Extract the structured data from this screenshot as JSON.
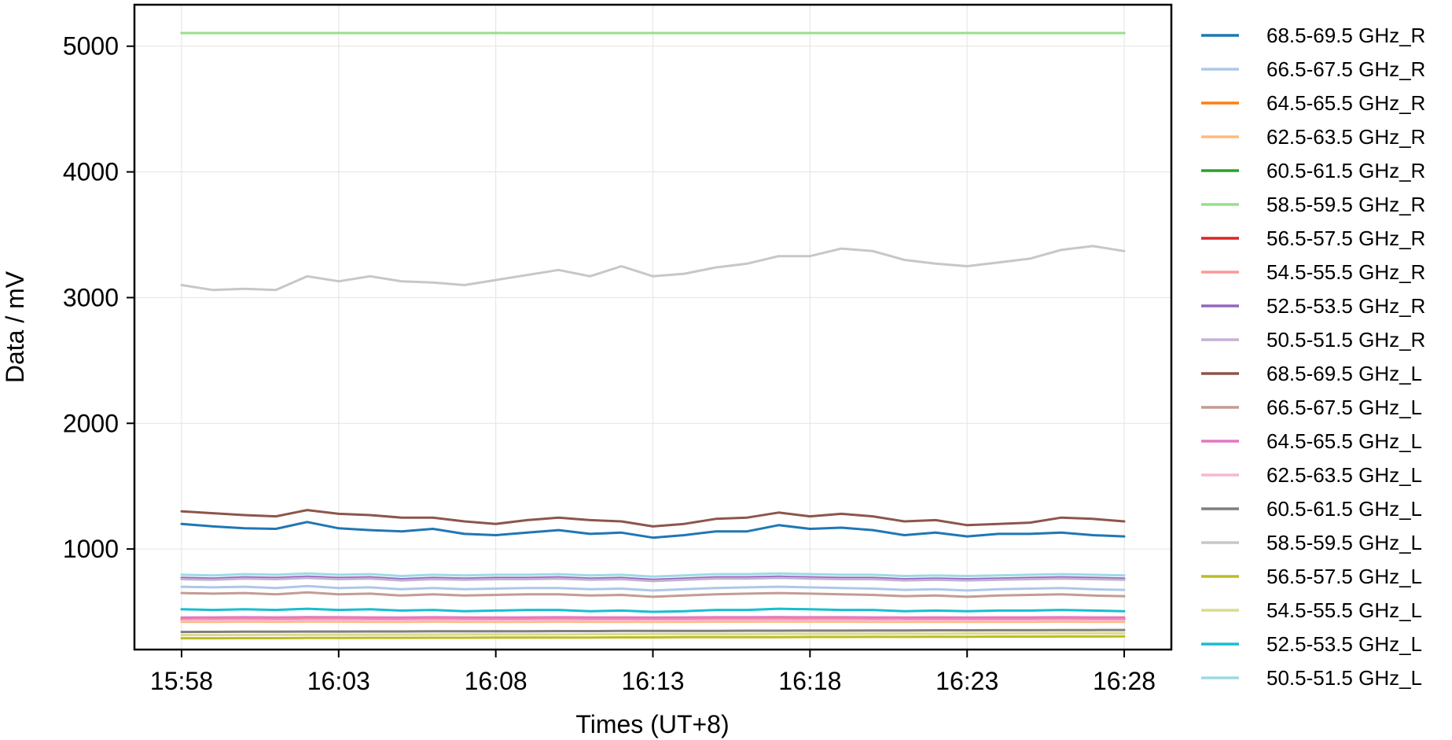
{
  "chart_data": {
    "type": "line",
    "title": "",
    "xlabel": "Times (UT+8)",
    "ylabel": "Data / mV",
    "x_ticks": [
      "15:58",
      "16:03",
      "16:08",
      "16:13",
      "16:18",
      "16:23",
      "16:28"
    ],
    "y_ticks": [
      1000,
      2000,
      3000,
      4000,
      5000
    ],
    "xlim": [
      "15:56:30",
      "16:29:30"
    ],
    "ylim": [
      200,
      5330
    ],
    "grid": true,
    "legend_position": "outside-right",
    "x": [
      "15:58",
      "15:59",
      "16:00",
      "16:01",
      "16:02",
      "16:03",
      "16:04",
      "16:05",
      "16:06",
      "16:07",
      "16:08",
      "16:09",
      "16:10",
      "16:11",
      "16:12",
      "16:13",
      "16:14",
      "16:15",
      "16:16",
      "16:17",
      "16:18",
      "16:19",
      "16:20",
      "16:21",
      "16:22",
      "16:23",
      "16:24",
      "16:25",
      "16:26",
      "16:27",
      "16:28"
    ],
    "series": [
      {
        "name": "68.5-69.5 GHz_R",
        "color": "#1f77b4",
        "values": [
          1200,
          1180,
          1165,
          1160,
          1215,
          1165,
          1150,
          1140,
          1160,
          1120,
          1110,
          1130,
          1150,
          1120,
          1130,
          1090,
          1110,
          1140,
          1140,
          1190,
          1160,
          1170,
          1150,
          1110,
          1130,
          1100,
          1120,
          1120,
          1130,
          1110,
          1100
        ]
      },
      {
        "name": "66.5-67.5 GHz_R",
        "color": "#aec7e8",
        "values": [
          700,
          695,
          700,
          690,
          705,
          690,
          695,
          680,
          690,
          680,
          685,
          690,
          690,
          680,
          685,
          670,
          680,
          690,
          695,
          700,
          695,
          690,
          685,
          675,
          680,
          670,
          680,
          685,
          690,
          680,
          675
        ]
      },
      {
        "name": "64.5-65.5 GHz_R",
        "color": "#ff7f0e",
        "values": [
          435,
          436,
          437,
          436,
          438,
          437,
          436,
          435,
          437,
          436,
          435,
          436,
          437,
          436,
          436,
          435,
          436,
          437,
          437,
          438,
          437,
          437,
          436,
          435,
          436,
          435,
          436,
          436,
          437,
          436,
          436
        ]
      },
      {
        "name": "62.5-63.5 GHz_R",
        "color": "#ffbb78",
        "values": [
          420,
          421,
          422,
          421,
          423,
          422,
          421,
          420,
          422,
          421,
          420,
          421,
          422,
          421,
          421,
          420,
          421,
          422,
          422,
          423,
          422,
          422,
          421,
          420,
          421,
          420,
          421,
          421,
          422,
          421,
          421
        ]
      },
      {
        "name": "60.5-61.5 GHz_R",
        "color": "#2ca02c",
        "values": [
          5105,
          5105,
          5105,
          5105,
          5105,
          5105,
          5105,
          5105,
          5105,
          5105,
          5105,
          5105,
          5105,
          5105,
          5105,
          5105,
          5105,
          5105,
          5105,
          5105,
          5105,
          5105,
          5105,
          5105,
          5105,
          5105,
          5105,
          5105,
          5105,
          5105,
          5105
        ]
      },
      {
        "name": "58.5-59.5 GHz_R",
        "color": "#98df8a",
        "values": [
          5105,
          5105,
          5105,
          5105,
          5105,
          5105,
          5105,
          5105,
          5105,
          5105,
          5105,
          5105,
          5105,
          5105,
          5105,
          5105,
          5105,
          5105,
          5105,
          5105,
          5105,
          5105,
          5105,
          5105,
          5105,
          5105,
          5105,
          5105,
          5105,
          5105,
          5105
        ]
      },
      {
        "name": "56.5-57.5 GHz_R",
        "color": "#d62728",
        "values": [
          445,
          446,
          447,
          446,
          448,
          447,
          446,
          445,
          447,
          446,
          445,
          446,
          447,
          446,
          446,
          445,
          446,
          447,
          447,
          448,
          447,
          447,
          446,
          445,
          446,
          445,
          446,
          446,
          447,
          446,
          446
        ]
      },
      {
        "name": "54.5-55.5 GHz_R",
        "color": "#ff9896",
        "values": [
          450,
          451,
          452,
          451,
          453,
          452,
          451,
          450,
          452,
          451,
          450,
          451,
          452,
          451,
          451,
          450,
          451,
          452,
          452,
          453,
          452,
          452,
          451,
          450,
          451,
          450,
          451,
          451,
          452,
          451,
          451
        ]
      },
      {
        "name": "52.5-53.5 GHz_R",
        "color": "#9467bd",
        "values": [
          770,
          765,
          775,
          770,
          780,
          770,
          775,
          760,
          770,
          765,
          770,
          770,
          775,
          765,
          770,
          755,
          765,
          775,
          775,
          780,
          775,
          770,
          770,
          760,
          765,
          760,
          765,
          770,
          775,
          770,
          765
        ]
      },
      {
        "name": "50.5-51.5 GHz_R",
        "color": "#c5b0d5",
        "values": [
          760,
          755,
          765,
          760,
          770,
          760,
          765,
          750,
          760,
          755,
          760,
          760,
          765,
          755,
          760,
          745,
          755,
          765,
          765,
          770,
          765,
          760,
          760,
          750,
          755,
          750,
          755,
          760,
          765,
          760,
          755
        ]
      },
      {
        "name": "68.5-69.5 GHz_L",
        "color": "#8c564b",
        "values": [
          1300,
          1285,
          1270,
          1260,
          1310,
          1280,
          1270,
          1250,
          1250,
          1220,
          1200,
          1230,
          1250,
          1230,
          1220,
          1180,
          1200,
          1240,
          1250,
          1290,
          1260,
          1280,
          1260,
          1220,
          1230,
          1190,
          1200,
          1210,
          1250,
          1240,
          1220
        ]
      },
      {
        "name": "66.5-67.5 GHz_L",
        "color": "#c49c94",
        "values": [
          650,
          645,
          650,
          640,
          655,
          640,
          645,
          630,
          640,
          630,
          635,
          640,
          640,
          630,
          635,
          620,
          630,
          640,
          645,
          650,
          645,
          640,
          635,
          625,
          630,
          620,
          630,
          635,
          640,
          630,
          625
        ]
      },
      {
        "name": "64.5-65.5 GHz_L",
        "color": "#e377c2",
        "values": [
          455,
          456,
          457,
          456,
          458,
          457,
          456,
          455,
          457,
          456,
          455,
          456,
          457,
          456,
          456,
          455,
          456,
          457,
          457,
          458,
          457,
          457,
          456,
          455,
          456,
          455,
          456,
          456,
          457,
          456,
          456
        ]
      },
      {
        "name": "62.5-63.5 GHz_L",
        "color": "#f7b6d2",
        "values": [
          430,
          431,
          432,
          431,
          433,
          432,
          431,
          430,
          432,
          431,
          430,
          431,
          432,
          431,
          431,
          430,
          431,
          432,
          432,
          433,
          432,
          432,
          431,
          430,
          431,
          430,
          431,
          431,
          432,
          431,
          431
        ]
      },
      {
        "name": "60.5-61.5 GHz_L",
        "color": "#7f7f7f",
        "values": [
          340,
          341,
          342,
          342,
          343,
          343,
          344,
          344,
          345,
          345,
          346,
          346,
          347,
          347,
          348,
          348,
          349,
          349,
          350,
          350,
          351,
          351,
          352,
          352,
          353,
          353,
          354,
          354,
          355,
          355,
          356
        ]
      },
      {
        "name": "58.5-59.5 GHz_L",
        "color": "#c7c7c7",
        "values": [
          3100,
          3060,
          3070,
          3060,
          3170,
          3130,
          3170,
          3130,
          3120,
          3100,
          3140,
          3180,
          3220,
          3170,
          3250,
          3170,
          3190,
          3240,
          3270,
          3330,
          3330,
          3390,
          3370,
          3300,
          3270,
          3250,
          3280,
          3310,
          3380,
          3410,
          3370
        ]
      },
      {
        "name": "56.5-57.5 GHz_L",
        "color": "#bcbd22",
        "values": [
          290,
          290,
          291,
          291,
          292,
          292,
          293,
          293,
          294,
          294,
          295,
          295,
          296,
          296,
          297,
          297,
          298,
          298,
          299,
          299,
          300,
          300,
          301,
          301,
          302,
          302,
          303,
          303,
          304,
          304,
          305
        ]
      },
      {
        "name": "54.5-55.5 GHz_L",
        "color": "#dbdb8d",
        "values": [
          315,
          316,
          316,
          317,
          317,
          318,
          318,
          319,
          319,
          320,
          320,
          321,
          321,
          322,
          322,
          323,
          323,
          324,
          324,
          325,
          325,
          326,
          326,
          327,
          327,
          328,
          328,
          329,
          329,
          330,
          330
        ]
      },
      {
        "name": "52.5-53.5 GHz_L",
        "color": "#17becf",
        "values": [
          520,
          515,
          520,
          515,
          525,
          515,
          520,
          510,
          515,
          505,
          510,
          515,
          515,
          505,
          510,
          500,
          505,
          515,
          515,
          525,
          520,
          515,
          515,
          505,
          510,
          505,
          510,
          510,
          515,
          510,
          505
        ]
      },
      {
        "name": "50.5-51.5 GHz_L",
        "color": "#9edae5",
        "values": [
          795,
          790,
          800,
          795,
          805,
          795,
          800,
          785,
          795,
          790,
          795,
          795,
          800,
          790,
          795,
          780,
          790,
          800,
          800,
          805,
          800,
          795,
          795,
          785,
          790,
          785,
          790,
          795,
          800,
          795,
          790
        ]
      }
    ]
  }
}
